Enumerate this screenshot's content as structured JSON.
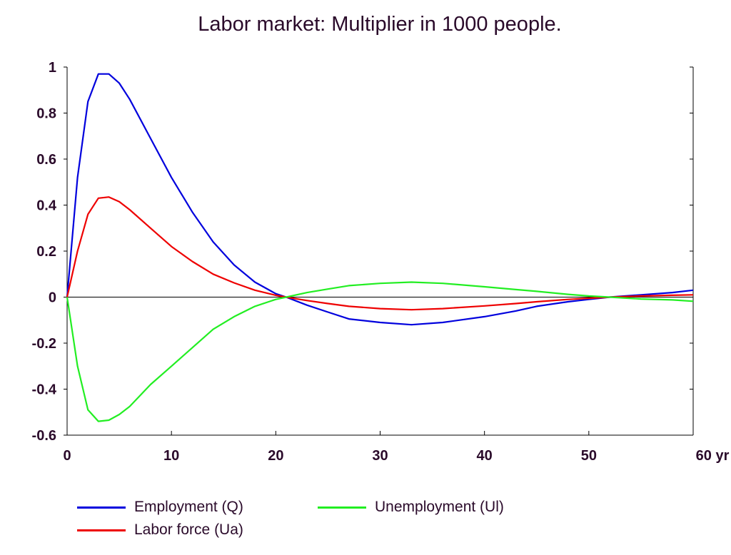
{
  "chart_data": {
    "type": "line",
    "title": "Labor market: Multiplier in 1000 people.",
    "xlabel": "",
    "ylabel": "",
    "xlim": [
      0,
      60
    ],
    "ylim": [
      -0.6,
      1.0
    ],
    "x_ticks": [
      0,
      10,
      20,
      30,
      40,
      50,
      60
    ],
    "x_tick_labels": [
      "0",
      "10",
      "20",
      "30",
      "40",
      "50",
      "60 yr"
    ],
    "y_ticks": [
      1,
      0.8,
      0.6,
      0.4,
      0.2,
      0,
      -0.2,
      -0.4,
      -0.6
    ],
    "y_tick_labels": [
      "1",
      "0.8",
      "0.6",
      "0.4",
      "0.2",
      "0",
      "-0.2",
      "-0.4",
      "-0.6"
    ],
    "grid": false,
    "legend_position": "bottom",
    "series": [
      {
        "name": "Employment (Q)",
        "color": "#0000dd",
        "x": [
          0,
          1,
          2,
          3,
          4,
          5,
          6,
          8,
          10,
          12,
          14,
          16,
          18,
          20,
          21,
          23,
          25,
          27,
          30,
          33,
          36,
          40,
          43,
          45,
          48,
          50,
          52,
          55,
          58,
          60
        ],
        "y": [
          0,
          0.52,
          0.85,
          0.97,
          0.97,
          0.93,
          0.86,
          0.69,
          0.52,
          0.37,
          0.24,
          0.14,
          0.065,
          0.015,
          0,
          -0.035,
          -0.065,
          -0.095,
          -0.11,
          -0.12,
          -0.11,
          -0.085,
          -0.06,
          -0.04,
          -0.02,
          -0.01,
          0,
          0.01,
          0.02,
          0.03
        ]
      },
      {
        "name": "Labor force (Ua)",
        "color": "#ee0000",
        "x": [
          0,
          1,
          2,
          3,
          4,
          5,
          6,
          8,
          10,
          12,
          14,
          16,
          18,
          20,
          21,
          23,
          25,
          27,
          30,
          33,
          36,
          40,
          43,
          45,
          48,
          50,
          52,
          55,
          58,
          60
        ],
        "y": [
          0,
          0.2,
          0.36,
          0.43,
          0.435,
          0.415,
          0.38,
          0.3,
          0.22,
          0.155,
          0.1,
          0.062,
          0.03,
          0.008,
          0,
          -0.015,
          -0.028,
          -0.04,
          -0.05,
          -0.055,
          -0.05,
          -0.038,
          -0.028,
          -0.02,
          -0.01,
          -0.005,
          0,
          0.005,
          0.008,
          0.01
        ]
      },
      {
        "name": "Unemployment (Ul)",
        "color": "#22ee22",
        "x": [
          0,
          1,
          2,
          3,
          4,
          5,
          6,
          8,
          10,
          12,
          14,
          16,
          18,
          20,
          21,
          23,
          25,
          27,
          30,
          33,
          36,
          40,
          43,
          45,
          48,
          50,
          52,
          55,
          58,
          60
        ],
        "y": [
          0,
          -0.3,
          -0.49,
          -0.54,
          -0.535,
          -0.51,
          -0.475,
          -0.38,
          -0.3,
          -0.22,
          -0.14,
          -0.085,
          -0.04,
          -0.01,
          0,
          0.02,
          0.035,
          0.05,
          0.06,
          0.065,
          0.06,
          0.045,
          0.033,
          0.025,
          0.012,
          0.005,
          0,
          -0.008,
          -0.012,
          -0.018
        ]
      }
    ]
  },
  "legend": {
    "items": [
      {
        "label": "Employment (Q)",
        "color": "#0000dd"
      },
      {
        "label": "Labor force (Ua)",
        "color": "#ee0000"
      },
      {
        "label": "Unemployment (Ul)",
        "color": "#22ee22"
      }
    ]
  }
}
